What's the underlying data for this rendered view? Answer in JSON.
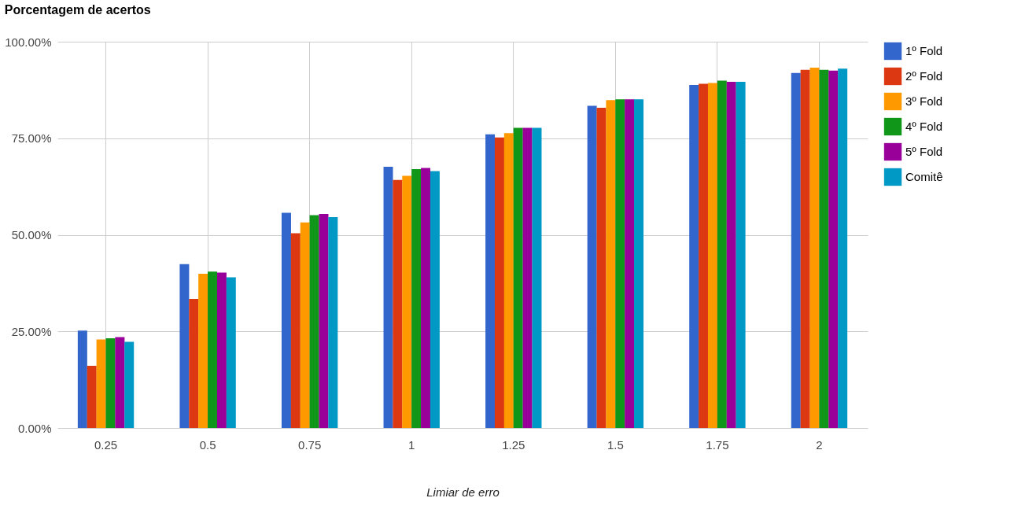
{
  "chart_data": {
    "type": "bar",
    "title": "Porcentagem de acertos",
    "xlabel": "Limiar de erro",
    "categories": [
      "0.25",
      "0.5",
      "0.75",
      "1",
      "1.25",
      "1.5",
      "1.75",
      "2"
    ],
    "series": [
      {
        "name": "1º Fold",
        "color": "#3366cc",
        "values": [
          25.2,
          42.4,
          55.7,
          67.6,
          76.0,
          83.4,
          88.8,
          91.9
        ]
      },
      {
        "name": "2º Fold",
        "color": "#dc3912",
        "values": [
          16.1,
          33.4,
          50.4,
          64.2,
          75.2,
          82.9,
          89.1,
          92.7
        ]
      },
      {
        "name": "3º Fold",
        "color": "#ff9900",
        "values": [
          22.9,
          39.9,
          53.2,
          65.3,
          76.3,
          84.9,
          89.3,
          93.3
        ]
      },
      {
        "name": "4º Fold",
        "color": "#109618",
        "values": [
          23.2,
          40.5,
          55.1,
          67.0,
          77.7,
          85.1,
          89.9,
          92.7
        ]
      },
      {
        "name": "5º Fold",
        "color": "#990099",
        "values": [
          23.5,
          40.2,
          55.4,
          67.3,
          77.7,
          85.1,
          89.6,
          92.5
        ]
      },
      {
        "name": "Comitê",
        "color": "#0099c6",
        "values": [
          22.3,
          39.0,
          54.6,
          66.5,
          77.7,
          85.1,
          89.6,
          93.0
        ]
      }
    ],
    "ylim": [
      0,
      100
    ],
    "yticks": [
      {
        "value": 0,
        "label": "0.00%"
      },
      {
        "value": 25,
        "label": "25.00%"
      },
      {
        "value": 50,
        "label": "50.00%"
      },
      {
        "value": 75,
        "label": "75.00%"
      },
      {
        "value": 100,
        "label": "100.00%"
      }
    ],
    "grid": true,
    "legend": "right"
  }
}
